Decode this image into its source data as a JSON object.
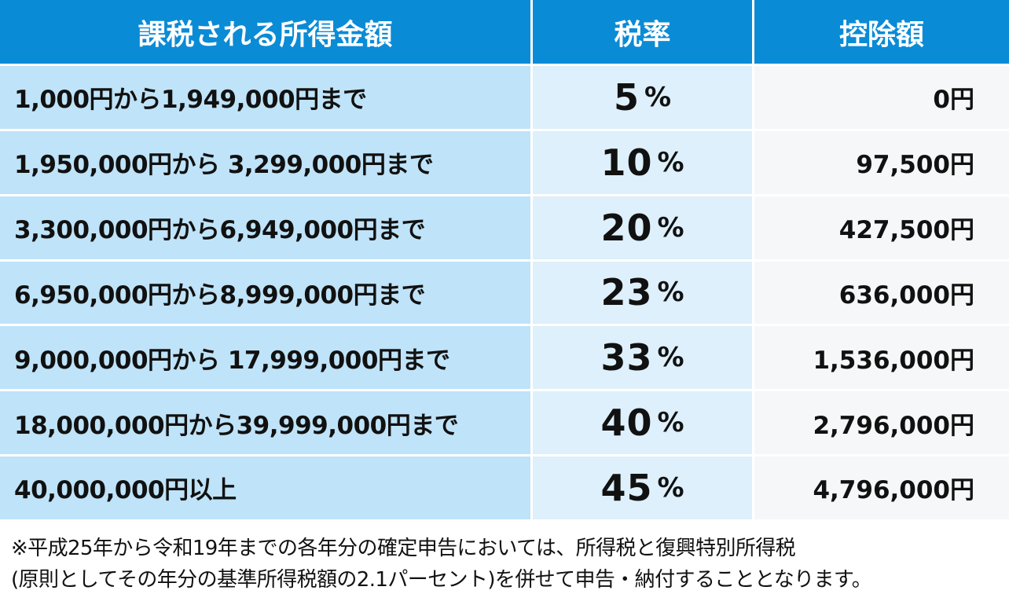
{
  "table": {
    "headers": {
      "income": "課税される所得金額",
      "rate": "税率",
      "deduction": "控除額"
    },
    "rows": [
      {
        "income": "1,000円から1,949,000円まで",
        "rate": "5",
        "unit": "%",
        "deduction": "0円"
      },
      {
        "income": "1,950,000円から 3,299,000円まで",
        "rate": "10",
        "unit": "%",
        "deduction": "97,500円"
      },
      {
        "income": "3,300,000円から6,949,000円まで",
        "rate": "20",
        "unit": "%",
        "deduction": "427,500円"
      },
      {
        "income": "6,950,000円から8,999,000円まで",
        "rate": "23",
        "unit": "%",
        "deduction": "636,000円"
      },
      {
        "income": "9,000,000円から 17,999,000円まで",
        "rate": "33",
        "unit": "%",
        "deduction": "1,536,000円"
      },
      {
        "income": "18,000,000円から39,999,000円まで",
        "rate": "40",
        "unit": "%",
        "deduction": "2,796,000円"
      },
      {
        "income": "40,000,000円以上",
        "rate": "45",
        "unit": "%",
        "deduction": "4,796,000円"
      }
    ]
  },
  "note": {
    "line1": "※平成25年から令和19年までの各年分の確定申告においては、所得税と復興特別所得税",
    "line2": "(原則としてその年分の基準所得税額の2.1パーセント)を併せて申告・納付することとなります。"
  },
  "colors": {
    "header_bg": "#0a8bd6",
    "income_bg": "#bfe3f8",
    "rate_bg": "#ddf0fb",
    "deduction_bg": "#f6f7f8"
  }
}
